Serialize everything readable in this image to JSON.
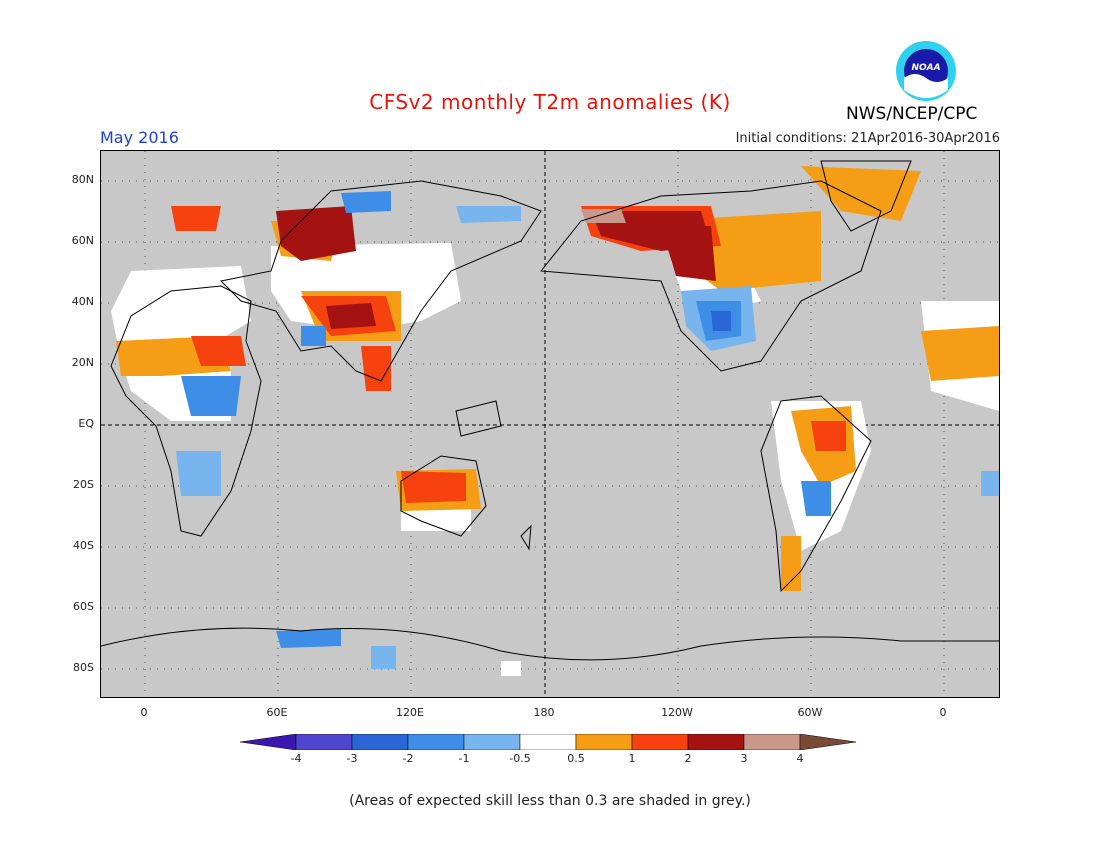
{
  "title": "CFSv2 monthly T2m anomalies (K)",
  "month": "May 2016",
  "initial_conditions": "Initial conditions: 21Apr2016-30Apr2016",
  "agency": "NWS/NCEP/CPC",
  "logo_text": "NOAA",
  "lat_labels": [
    "80N",
    "60N",
    "40N",
    "20N",
    "EQ",
    "20S",
    "40S",
    "60S",
    "80S"
  ],
  "lon_labels": [
    "0",
    "60E",
    "120E",
    "180",
    "120W",
    "60W",
    "0"
  ],
  "colorbar": {
    "tick_labels": [
      "-4",
      "-3",
      "-2",
      "-1",
      "-0.5",
      "0.5",
      "1",
      "2",
      "3",
      "4"
    ],
    "colors": [
      "#3a18b0",
      "#4f46d0",
      "#2a66d6",
      "#3e8ee8",
      "#78b4ee",
      "#ffffff",
      "#f59d14",
      "#f5420e",
      "#a51212",
      "#c9988a",
      "#7a4a36"
    ]
  },
  "footnote": "(Areas of expected skill less than 0.3 are shaded in grey.)",
  "colors": {
    "grey_mask": "#c8c8c8",
    "title": "#e8140c",
    "month": "#1f3fe0"
  }
}
